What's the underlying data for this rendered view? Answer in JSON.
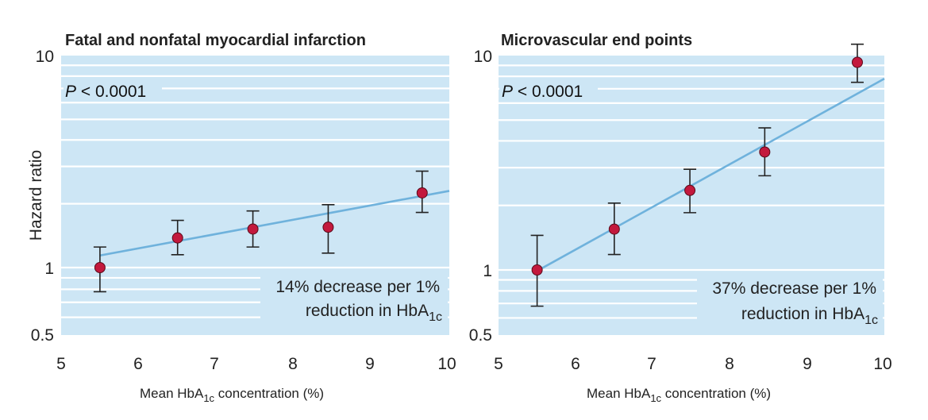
{
  "colors": {
    "plot_bg": "#cde6f5",
    "grid": "#ffffff",
    "fit_line": "#6fb2dc",
    "point_fill": "#c3193d",
    "error_bar": "#222222"
  },
  "chart_data": [
    {
      "type": "scatter",
      "title": "Fatal and nonfatal myocardial infarction",
      "ylabel": "Hazard ratio",
      "xlabel": {
        "pre": "Mean HbA",
        "sub": "1c",
        "post": " concentration (%)"
      },
      "x_ticks": [
        "5",
        "6",
        "7",
        "8",
        "9",
        "10"
      ],
      "y_ticks": [
        {
          "label": "10",
          "value": 10
        },
        {
          "label": "1",
          "value": 1
        },
        {
          "label": "0.5",
          "value": 0.5
        }
      ],
      "xlim": [
        5,
        10
      ],
      "ylim": [
        0.5,
        10
      ],
      "y_scale": "log",
      "p_value": {
        "italic": "P",
        "rest": " < 0.0001"
      },
      "annotation": {
        "line1": "14% decrease per 1%",
        "line2_pre": "reduction in HbA",
        "line2_sub": "1c"
      },
      "points": [
        {
          "x": 5.5,
          "y": 1.0,
          "lo": 0.78,
          "hi": 1.25
        },
        {
          "x": 6.5,
          "y": 1.38,
          "lo": 1.15,
          "hi": 1.67
        },
        {
          "x": 7.47,
          "y": 1.52,
          "lo": 1.25,
          "hi": 1.85
        },
        {
          "x": 8.44,
          "y": 1.55,
          "lo": 1.17,
          "hi": 1.98
        },
        {
          "x": 9.65,
          "y": 2.25,
          "lo": 1.82,
          "hi": 2.85
        }
      ],
      "fit_line": [
        {
          "x": 5.5,
          "y": 1.14
        },
        {
          "x": 10,
          "y": 2.3
        }
      ]
    },
    {
      "type": "scatter",
      "title": "Microvascular end points",
      "ylabel": "",
      "xlabel": {
        "pre": "Mean HbA",
        "sub": "1c",
        "post": " concentration (%)"
      },
      "x_ticks": [
        "5",
        "6",
        "7",
        "8",
        "9",
        "10"
      ],
      "y_ticks": [
        {
          "label": "10",
          "value": 10
        },
        {
          "label": "1",
          "value": 1
        },
        {
          "label": "0.5",
          "value": 0.5
        }
      ],
      "xlim": [
        5,
        10
      ],
      "ylim": [
        0.5,
        10
      ],
      "y_scale": "log",
      "p_value": {
        "italic": "P",
        "rest": " < 0.0001"
      },
      "annotation": {
        "line1": "37% decrease per 1%",
        "line2_pre": "reduction in HbA",
        "line2_sub": "1c"
      },
      "points": [
        {
          "x": 5.5,
          "y": 1.0,
          "lo": 0.68,
          "hi": 1.45
        },
        {
          "x": 6.5,
          "y": 1.55,
          "lo": 1.18,
          "hi": 2.05
        },
        {
          "x": 7.48,
          "y": 2.35,
          "lo": 1.85,
          "hi": 2.95
        },
        {
          "x": 8.45,
          "y": 3.55,
          "lo": 2.75,
          "hi": 4.6
        },
        {
          "x": 9.65,
          "y": 9.3,
          "lo": 7.5,
          "hi": 11.3
        }
      ],
      "fit_line": [
        {
          "x": 5.5,
          "y": 0.99
        },
        {
          "x": 10,
          "y": 7.8
        }
      ]
    }
  ]
}
